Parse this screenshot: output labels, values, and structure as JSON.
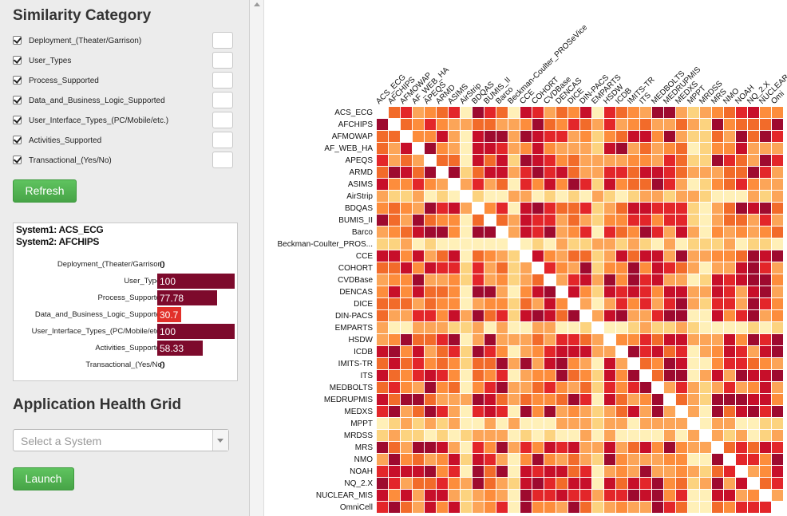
{
  "similarity": {
    "title": "Similarity Category",
    "categories": [
      {
        "label": "Deployment_(Theater/Garrison)",
        "checked": true
      },
      {
        "label": "User_Types",
        "checked": true
      },
      {
        "label": "Process_Supported",
        "checked": true
      },
      {
        "label": "Data_and_Business_Logic_Supported",
        "checked": true
      },
      {
        "label": "User_Interface_Types_(PC/Mobile/etc.)",
        "checked": true
      },
      {
        "label": "Activities_Supported",
        "checked": true
      },
      {
        "label": "Transactional_(Yes/No)",
        "checked": true
      }
    ],
    "refresh_label": "Refresh"
  },
  "detail": {
    "system1": "System1: ACS_ECG",
    "system2": "System2: AFCHIPS",
    "bars": [
      {
        "label": "Deployment_(Theater/Garrison)",
        "value": "0",
        "fraction": 0,
        "color": "#7d0a2c"
      },
      {
        "label": "User_Types",
        "value": "100",
        "fraction": 1.0,
        "color": "#7d0a2c"
      },
      {
        "label": "Process_Supported",
        "value": "77.78",
        "fraction": 0.7778,
        "color": "#7d0a2c"
      },
      {
        "label": "Data_and_Business_Logic_Supported",
        "value": "30.7",
        "fraction": 0.307,
        "color": "#e2302a"
      },
      {
        "label": "User_Interface_Types_(PC/Mobile/etc.)",
        "value": "100",
        "fraction": 1.0,
        "color": "#7d0a2c"
      },
      {
        "label": "Activities_Supported",
        "value": "58.33",
        "fraction": 0.5833,
        "color": "#7d0a2c"
      },
      {
        "label": "Transactional_(Yes/No)",
        "value": "0",
        "fraction": 0,
        "color": "#7d0a2c"
      }
    ]
  },
  "health": {
    "title": "Application Health Grid",
    "select_placeholder": "Select a System",
    "launch_label": "Launch"
  },
  "grid": {
    "rows": [
      "ACS_ECG",
      "AFCHIPS",
      "AFMOWAP",
      "AF_WEB_HA",
      "APEQS",
      "ARMD",
      "ASIMS",
      "AirStrip",
      "BDQAS",
      "BUMIS_II",
      "Barco",
      "Beckman-Coulter_PROS...",
      "CCE",
      "COHORT",
      "CVDBase",
      "DENCAS",
      "DICE",
      "DIN-PACS",
      "EMPARTS",
      "HSDW",
      "ICDB",
      "IMITS-TR",
      "ITS",
      "MEDBOLTS",
      "MEDRUPMIS",
      "MEDXS",
      "MPPT",
      "MRDSS",
      "MRS",
      "NMO",
      "NOAH",
      "NQ_2.X",
      "NUCLEAR_MIS",
      "OmniCell"
    ],
    "columns": [
      "ACS_ECG",
      "AFCHIPS",
      "AFMOWAP",
      "AF_WEB_HA",
      "APEQS",
      "ARMD",
      "ASIMS",
      "AirStrip",
      "BDQAS",
      "BUMIS_II",
      "Barco",
      "Beckman-Coulter_PROSeVice",
      "CCE",
      "COHORT",
      "CVDBase",
      "DENCAS",
      "DICE",
      "DIN-PACS",
      "EMPARTS",
      "HSDW",
      "ICDB",
      "IMITS-TR",
      "ITS",
      "MEDBOLTS",
      "MEDRUPMIS",
      "MEDXS",
      "MPPT",
      "MRDSS",
      "MRS",
      "NMO",
      "NOAH",
      "NQ_2.X",
      "NUCLEAR",
      "Omi"
    ],
    "palette": [
      "#ffffff",
      "#fff0b8",
      "#fcd37f",
      "#fca558",
      "#fd8d3c",
      "#f26b2a",
      "#e3262a",
      "#c70f2a",
      "#9e0a2f",
      "#6e0523"
    ]
  }
}
